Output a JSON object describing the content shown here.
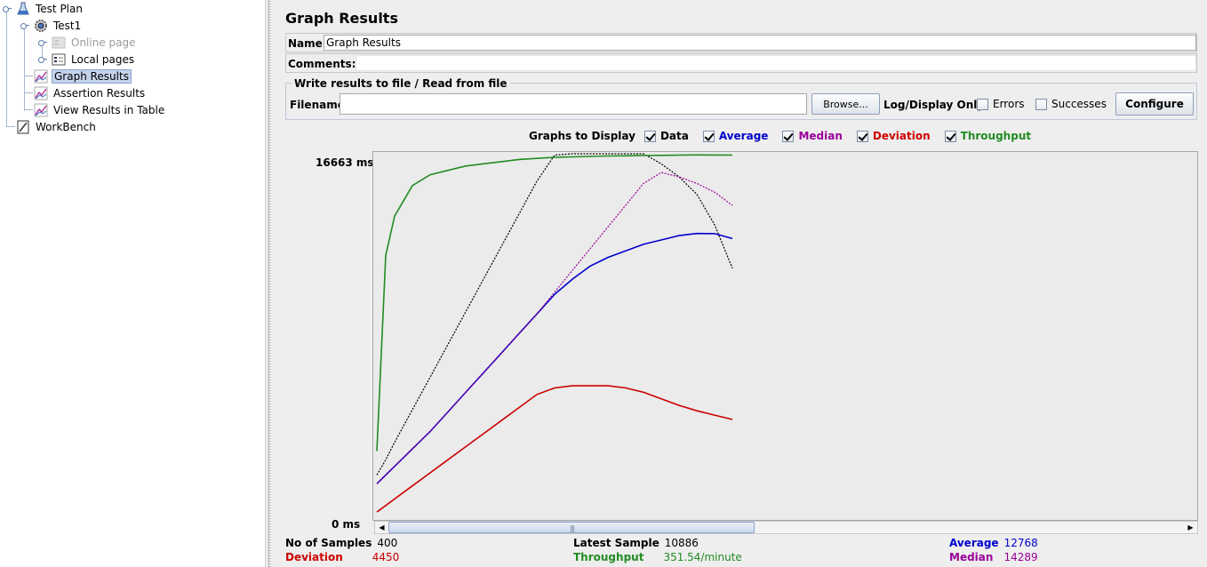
{
  "tree": {
    "test_plan": "Test Plan",
    "thread_group": "Test1",
    "online_page": "Online page",
    "local_pages": "Local pages",
    "graph_results": "Graph Results",
    "assertion_results": "Assertion Results",
    "view_results_table": "View Results in Table",
    "workbench": "WorkBench"
  },
  "main": {
    "title": "Graph Results",
    "name_label": "Name:",
    "name_value": "Graph Results",
    "comments_label": "Comments:",
    "comments_value": ""
  },
  "file_panel": {
    "legend": "Write results to file / Read from file",
    "filename_label": "Filename",
    "filename_value": "",
    "browse": "Browse...",
    "log_display_label": "Log/Display Only:",
    "errors": "Errors",
    "errors_checked": false,
    "successes": "Successes",
    "successes_checked": false,
    "configure": "Configure"
  },
  "graphs_to_display": {
    "title": "Graphs to Display",
    "options": [
      {
        "label": "Data",
        "checked": true,
        "color": "#000000"
      },
      {
        "label": "Average",
        "checked": true,
        "color": "#0000cc"
      },
      {
        "label": "Median",
        "checked": true,
        "color": "#990099"
      },
      {
        "label": "Deviation",
        "checked": true,
        "color": "#cc0000"
      },
      {
        "label": "Throughput",
        "checked": true,
        "color": "#228b22"
      }
    ]
  },
  "graph": {
    "y_max_label": "16663  ms",
    "y_min_label": "0  ms"
  },
  "chart_data": {
    "type": "line",
    "title": "Graph Results",
    "ylabel": "ms",
    "ylim": [
      0,
      16663
    ],
    "xlim": [
      0,
      400
    ],
    "x": [
      0,
      10,
      20,
      40,
      60,
      80,
      100,
      120,
      140,
      160,
      180,
      200,
      220,
      240,
      260,
      280,
      300,
      320,
      340,
      360,
      380,
      400
    ],
    "series": [
      {
        "name": "Data",
        "color": "#000000",
        "values": [
          1900,
          2600,
          3400,
          4900,
          6400,
          7900,
          9400,
          10900,
          12400,
          13900,
          15400,
          16600,
          16663,
          16663,
          16663,
          16663,
          16663,
          16200,
          15600,
          14800,
          13400,
          11400
        ]
      },
      {
        "name": "Average",
        "color": "#0000cc",
        "values": [
          1500,
          1900,
          2300,
          3100,
          3900,
          4800,
          5700,
          6600,
          7500,
          8400,
          9300,
          10200,
          10900,
          11500,
          11900,
          12200,
          12500,
          12700,
          12900,
          13000,
          12990,
          12768
        ]
      },
      {
        "name": "Median",
        "color": "#990099",
        "values": [
          1500,
          1900,
          2300,
          3100,
          3900,
          4800,
          5700,
          6600,
          7500,
          8400,
          9300,
          10300,
          11300,
          12300,
          13300,
          14300,
          15300,
          15800,
          15600,
          15300,
          14900,
          14289
        ]
      },
      {
        "name": "Deviation",
        "color": "#cc0000",
        "values": [
          200,
          500,
          800,
          1400,
          2000,
          2600,
          3200,
          3800,
          4400,
          5000,
          5600,
          5900,
          6000,
          6000,
          6000,
          5900,
          5700,
          5400,
          5100,
          4850,
          4650,
          4450
        ]
      },
      {
        "name": "Throughput",
        "color": "#228b22",
        "values": [
          3000,
          12000,
          13800,
          15200,
          15700,
          15900,
          16100,
          16200,
          16300,
          16400,
          16450,
          16500,
          16520,
          16540,
          16560,
          16570,
          16580,
          16590,
          16600,
          16610,
          16605,
          16600
        ]
      }
    ]
  },
  "stats": {
    "samples_label": "No of Samples",
    "samples_value": "400",
    "latest_label": "Latest Sample",
    "latest_value": "10886",
    "average_label": "Average",
    "average_value": "12768",
    "deviation_label": "Deviation",
    "deviation_value": "4450",
    "throughput_label": "Throughput",
    "throughput_value": "351.54/minute",
    "median_label": "Median",
    "median_value": "14289"
  },
  "colors": {
    "data": "#000000",
    "average": "#0000cc",
    "median": "#990099",
    "deviation": "#cc0000",
    "throughput": "#228b22"
  }
}
